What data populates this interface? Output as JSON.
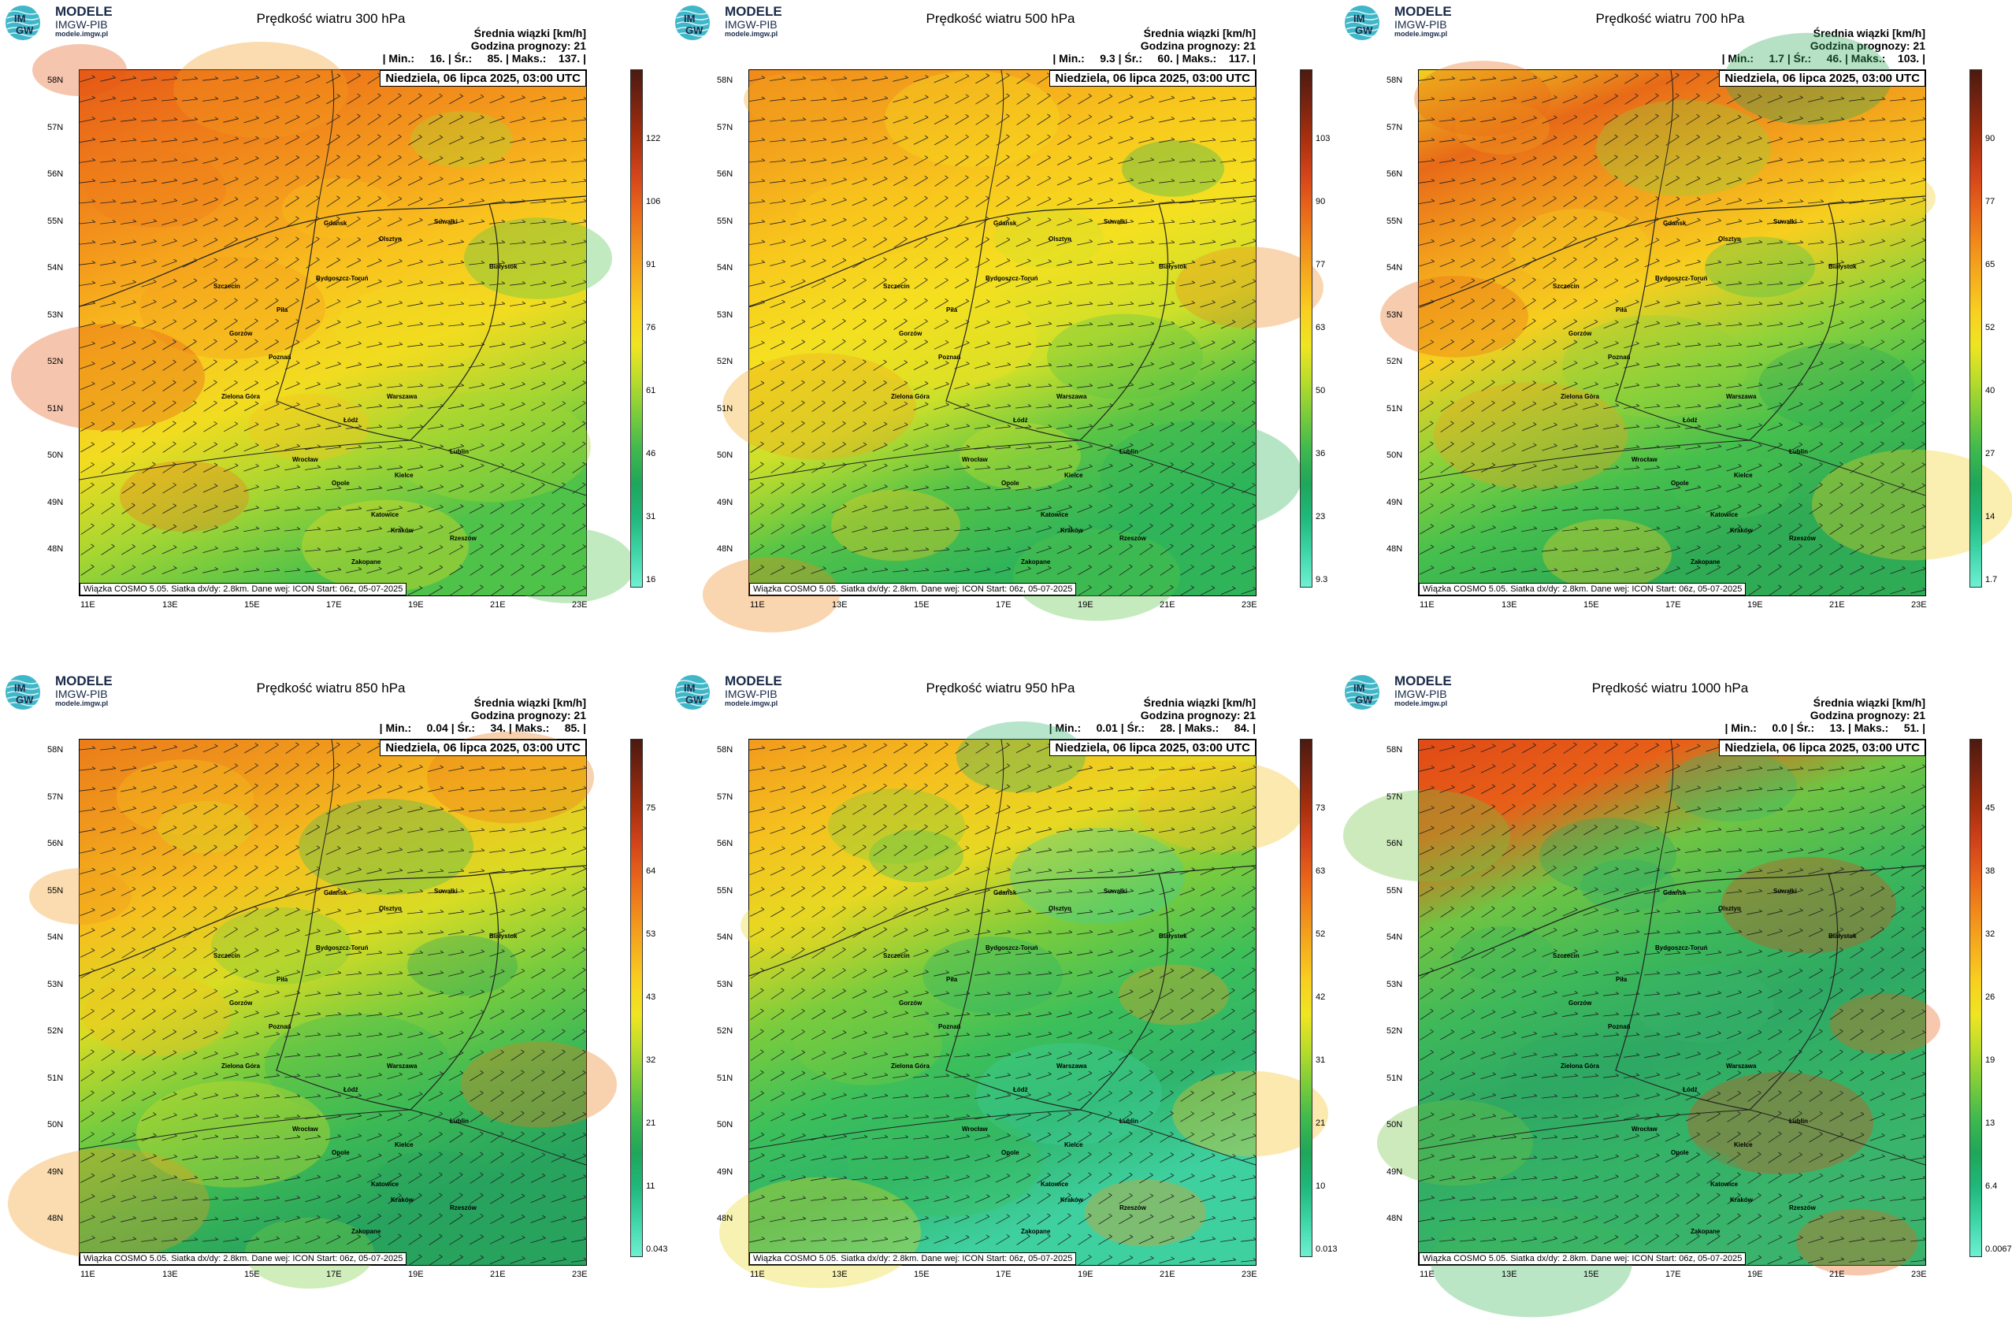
{
  "logo": {
    "line1": "MODELE",
    "line2": "IMGW-PIB",
    "line3": "modele.imgw.pl",
    "badge1": "IM",
    "badge2": "GW",
    "colors": {
      "wave": "#3fb7c8",
      "text": "#1a2b4a"
    }
  },
  "common": {
    "meta_line1": "Średnia wiązki [km/h]",
    "meta_line2": "Godzina prognozy: 21",
    "date": "Niedziela, 06 lipca 2025, 03:00 UTC",
    "footer": "Wiązka COSMO 5.05. Siatka dx/dy: 2.8km. Dane wej: ICON Start: 06z, 05-07-2025",
    "lat_labels": [
      "58N",
      "57N",
      "56N",
      "55N",
      "54N",
      "53N",
      "52N",
      "51N",
      "50N",
      "49N",
      "48N"
    ],
    "lon_labels": [
      "11E",
      "13E",
      "15E",
      "17E",
      "19E",
      "21E",
      "23E"
    ],
    "cities": [
      "Gdańsk",
      "Olsztyn",
      "Suwałki",
      "Białystok",
      "Bydgoszcz-Toruń",
      "Piła",
      "Szczecin",
      "Gorzów",
      "Poznań",
      "Zielona Góra",
      "Warszawa",
      "Łódź",
      "Lublin",
      "Wrocław",
      "Opole",
      "Kielce",
      "Katowice",
      "Kraków",
      "Rzeszów",
      "Zakopane"
    ]
  },
  "panels": [
    {
      "title": "Prędkość wiatru 300 hPa",
      "stats": "| Min.:     16. | Śr.:     85. | Maks.:    137. |",
      "colorbar": [
        "122",
        "106",
        "91",
        "76",
        "61",
        "46",
        "31",
        "16"
      ],
      "field": [
        "#e65a17",
        "#ee7a1a",
        "#f49a1c",
        "#f9c31e",
        "#f2dc20",
        "#a6d632",
        "#4fc24a"
      ]
    },
    {
      "title": "Prędkość wiatru 500 hPa",
      "stats": "| Min.:     9.3 | Śr.:     60. | Maks.:    117. |",
      "colorbar": [
        "103",
        "90",
        "77",
        "63",
        "50",
        "36",
        "23",
        "9.3"
      ],
      "field": [
        "#ef8a1b",
        "#f4a71c",
        "#f8c81d",
        "#f5e020",
        "#cde02a",
        "#58c446",
        "#2fb45a"
      ]
    },
    {
      "title": "Prędkość wiatru 700 hPa",
      "stats": "| Min.:     1.7 | Śr.:     46. | Maks.:    103. |",
      "colorbar": [
        "90",
        "77",
        "65",
        "52",
        "40",
        "27",
        "14",
        "1.7"
      ],
      "field": [
        "#f0d020",
        "#e86a18",
        "#f2a01c",
        "#f7cf1f",
        "#8fd23a",
        "#45bf4d",
        "#2faa55"
      ]
    },
    {
      "title": "Prędkość wiatru 850 hPa",
      "stats": "| Min.:     0.04 | Śr.:     34. | Maks.:     85. |",
      "colorbar": [
        "75",
        "64",
        "53",
        "43",
        "32",
        "21",
        "11",
        "0.043"
      ],
      "field": [
        "#eb7c1a",
        "#f09a1c",
        "#f5c01e",
        "#d8dc24",
        "#78cc3e",
        "#3cb955",
        "#27a35e"
      ]
    },
    {
      "title": "Prędkość wiatru 950 hPa",
      "stats": "| Min.:     0.01 | Śr.:     28. | Maks.:     84. |",
      "colorbar": [
        "73",
        "63",
        "52",
        "42",
        "31",
        "21",
        "10",
        "0.013"
      ],
      "field": [
        "#f29a1c",
        "#f5c01e",
        "#e8d822",
        "#7bcc3d",
        "#3cbf5a",
        "#2fb46a",
        "#3fd0a0"
      ]
    },
    {
      "title": "Prędkość wiatru 1000 hPa",
      "stats": "| Min.:     0.0 | Śr.:     13. | Maks.:     51. |",
      "colorbar": [
        "45",
        "38",
        "32",
        "26",
        "19",
        "13",
        "6.4",
        "0.0067"
      ],
      "field": [
        "#e04a16",
        "#e86018",
        "#6fc443",
        "#3db85a",
        "#2ea863",
        "#34b266",
        "#3ab46c"
      ]
    }
  ]
}
